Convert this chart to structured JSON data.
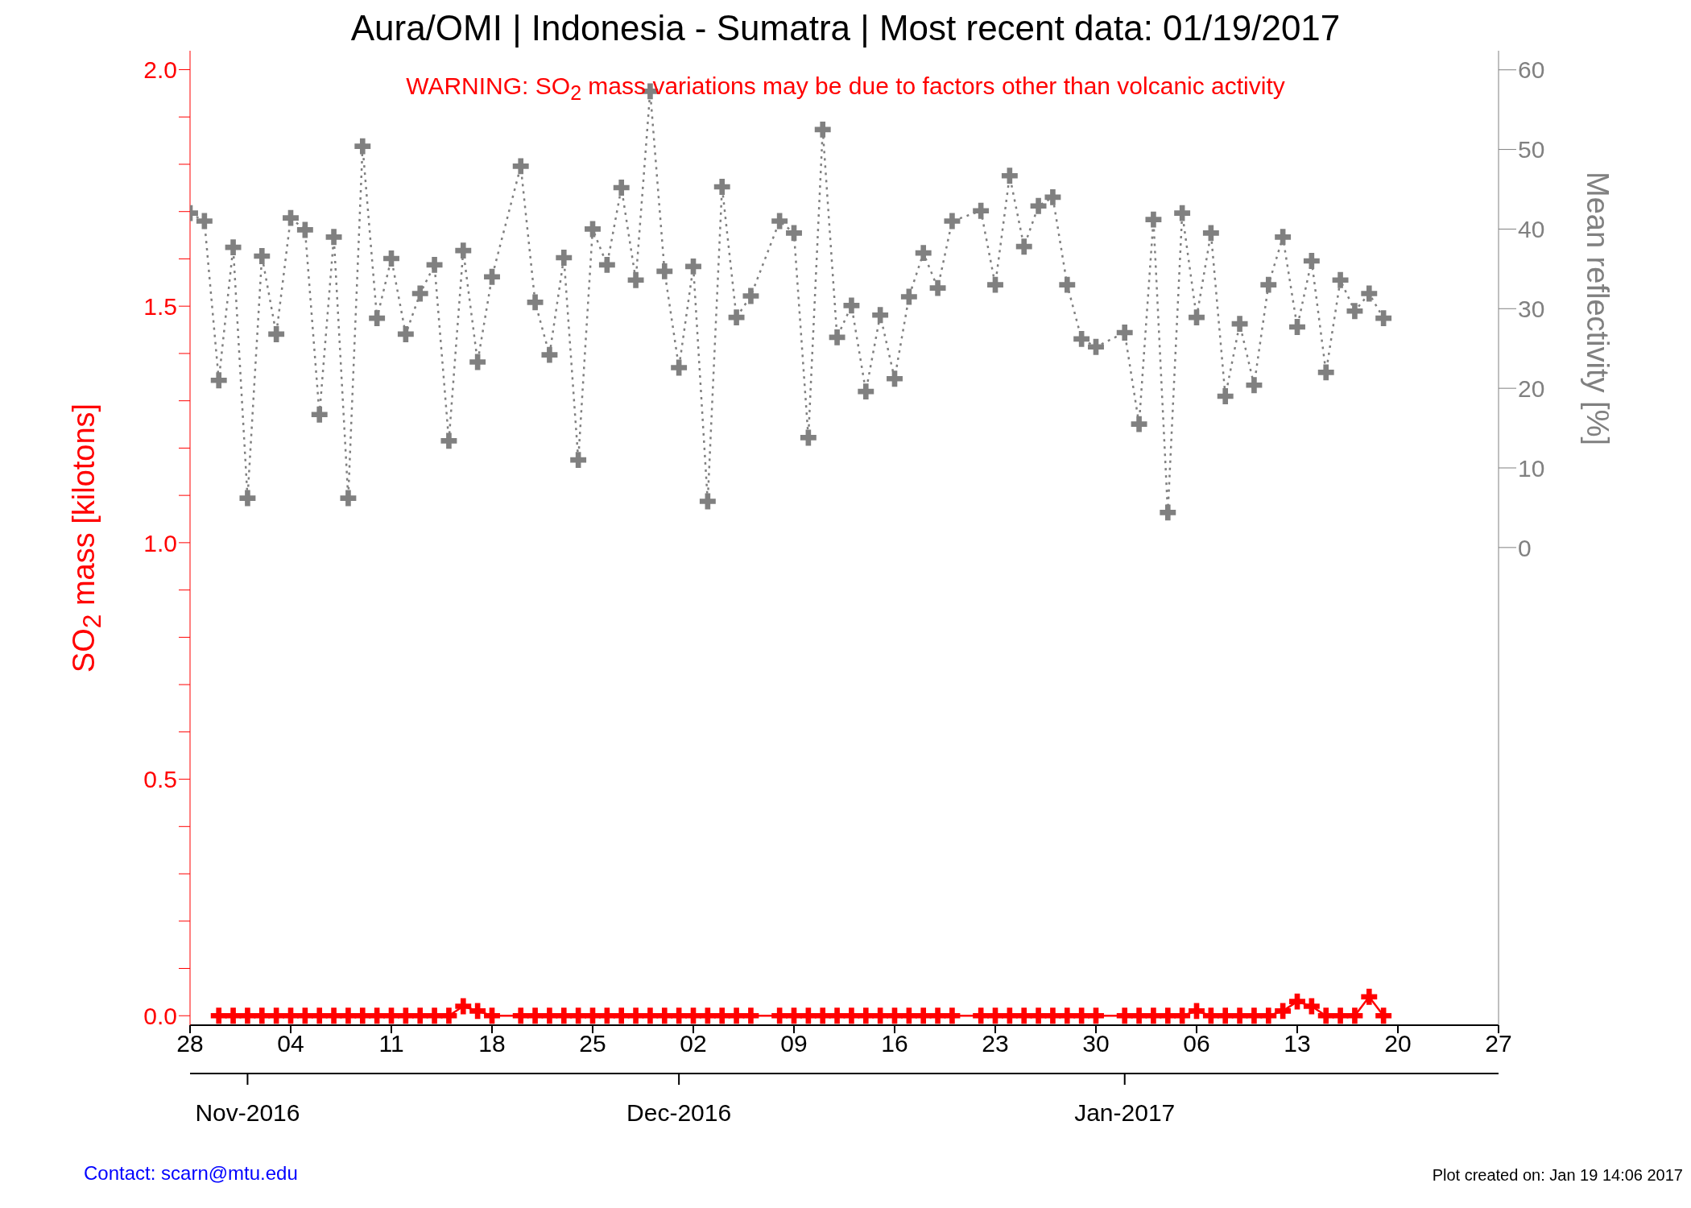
{
  "chart_data": {
    "type": "line",
    "title": "Aura/OMI | Indonesia - Sumatra | Most recent data: 01/19/2017",
    "ylabel": "SO$_{2}$ mass [kilotons]",
    "y2label": "Mean reflectivity [%]",
    "annotations": [
      "WARNING: SO$_{2}$ mass variations may be due to factors other than volcanic activity",
      "Contact: scarn@mtu.edu",
      "Plot created on: Jan 19 14:06 2017"
    ],
    "x": [
      "2016-10-28",
      "2016-10-29",
      "2016-10-30",
      "2016-10-31",
      "2016-11-01",
      "2016-11-02",
      "2016-11-03",
      "2016-11-04",
      "2016-11-05",
      "2016-11-06",
      "2016-11-07",
      "2016-11-08",
      "2016-11-09",
      "2016-11-10",
      "2016-11-11",
      "2016-11-12",
      "2016-11-13",
      "2016-11-14",
      "2016-11-15",
      "2016-11-16",
      "2016-11-17",
      "2016-11-18",
      "2016-11-20",
      "2016-11-21",
      "2016-11-22",
      "2016-11-23",
      "2016-11-24",
      "2016-11-25",
      "2016-11-26",
      "2016-11-27",
      "2016-11-28",
      "2016-11-29",
      "2016-11-30",
      "2016-12-01",
      "2016-12-02",
      "2016-12-03",
      "2016-12-04",
      "2016-12-05",
      "2016-12-06",
      "2016-12-08",
      "2016-12-09",
      "2016-12-10",
      "2016-12-11",
      "2016-12-12",
      "2016-12-13",
      "2016-12-14",
      "2016-12-15",
      "2016-12-16",
      "2016-12-17",
      "2016-12-18",
      "2016-12-19",
      "2016-12-20",
      "2016-12-22",
      "2016-12-23",
      "2016-12-24",
      "2016-12-25",
      "2016-12-26",
      "2016-12-27",
      "2016-12-28",
      "2016-12-29",
      "2016-12-30",
      "2017-01-01",
      "2017-01-02",
      "2017-01-03",
      "2017-01-04",
      "2017-01-05",
      "2017-01-06",
      "2017-01-07",
      "2017-01-08",
      "2017-01-09",
      "2017-01-10",
      "2017-01-11",
      "2017-01-12",
      "2017-01-13",
      "2017-01-14",
      "2017-01-15",
      "2017-01-16",
      "2017-01-17",
      "2017-01-18",
      "2017-01-19"
    ],
    "series": [
      {
        "color": "#ff0000",
        "line_style": "solid",
        "values": [
          null,
          null,
          0,
          0,
          0,
          0,
          0,
          0,
          0,
          0,
          0,
          0,
          0,
          0,
          0,
          0,
          0,
          0,
          0,
          0.02,
          0.01,
          0,
          0,
          0,
          0,
          0,
          0,
          0,
          0,
          0,
          0,
          0,
          0,
          0,
          0,
          0,
          0,
          0,
          0,
          0,
          0,
          0,
          0,
          0,
          0,
          0,
          0,
          0,
          0,
          0,
          0,
          0,
          0,
          0,
          0,
          0,
          0,
          0,
          0,
          0,
          0,
          0,
          0,
          0,
          0,
          0,
          0.01,
          0,
          0,
          0,
          0,
          0,
          0.01,
          0.03,
          0.02,
          0,
          0,
          0,
          0.04,
          0
        ]
      },
      {
        "color": "#808080",
        "axis": "y2",
        "line_style": "dotted",
        "values": [
          42,
          41,
          21,
          37.7,
          6.2,
          36.6,
          26.8,
          41.4,
          39.9,
          16.7,
          39,
          6.2,
          50.4,
          28.8,
          36.3,
          26.8,
          31.9,
          35.5,
          13.4,
          37.3,
          23.3,
          34,
          47.9,
          30.8,
          24.2,
          36.4,
          11,
          40,
          35.5,
          45.2,
          33.6,
          57.3,
          34.7,
          22.6,
          35.3,
          5.8,
          45.3,
          28.9,
          31.6,
          41,
          39.5,
          13.8,
          52.5,
          26.4,
          30.4,
          19.6,
          29.2,
          21.2,
          31.5,
          37,
          32.6,
          41,
          42.3,
          33,
          46.7,
          37.8,
          42.9,
          44,
          33,
          26.2,
          25.2,
          27,
          15.5,
          41.2,
          4.4,
          42,
          28.9,
          39.5,
          19,
          28.1,
          20.4,
          33,
          39,
          27.7,
          36,
          22,
          33.6,
          29.7,
          31.9,
          28.8
        ]
      }
    ],
    "marker": "cross",
    "grid": false,
    "xlim": [
      "2016-10-28",
      "2017-01-27"
    ],
    "xticks": [
      {
        "value": "2016-10-28",
        "label": "28"
      },
      {
        "value": "2016-11-04",
        "label": "04"
      },
      {
        "value": "2016-11-11",
        "label": "11"
      },
      {
        "value": "2016-11-18",
        "label": "18"
      },
      {
        "value": "2016-11-25",
        "label": "25"
      },
      {
        "value": "2016-12-02",
        "label": "02"
      },
      {
        "value": "2016-12-09",
        "label": "09"
      },
      {
        "value": "2016-12-16",
        "label": "16"
      },
      {
        "value": "2016-12-23",
        "label": "23"
      },
      {
        "value": "2016-12-30",
        "label": "30"
      },
      {
        "value": "2017-01-06",
        "label": "06"
      },
      {
        "value": "2017-01-13",
        "label": "13"
      },
      {
        "value": "2017-01-20",
        "label": "20"
      },
      {
        "value": "2017-01-27",
        "label": "27"
      }
    ],
    "x2lim": [
      "2016-10-28",
      "2017-01-27"
    ],
    "x2ticks": [
      {
        "value": "2016-11-01",
        "label": "Nov-2016"
      },
      {
        "value": "2016-12-01",
        "label": "Dec-2016"
      },
      {
        "value": "2017-01-01",
        "label": "Jan-2017"
      }
    ],
    "ylim": [
      -0.02,
      2.04
    ],
    "yticks": [
      {
        "value": 0,
        "label": "0.0"
      },
      {
        "value": 0.1,
        "label": null
      },
      {
        "value": 0.2,
        "label": null
      },
      {
        "value": 0.3,
        "label": null
      },
      {
        "value": 0.4,
        "label": null
      },
      {
        "value": 0.5,
        "label": "0.5"
      },
      {
        "value": 0.6,
        "label": null
      },
      {
        "value": 0.7,
        "label": null
      },
      {
        "value": 0.8,
        "label": null
      },
      {
        "value": 0.9,
        "label": null
      },
      {
        "value": 1,
        "label": "1.0"
      },
      {
        "value": 1.1,
        "label": null
      },
      {
        "value": 1.2,
        "label": null
      },
      {
        "value": 1.3,
        "label": null
      },
      {
        "value": 1.4,
        "label": null
      },
      {
        "value": 1.5,
        "label": "1.5"
      },
      {
        "value": 1.6,
        "label": null
      },
      {
        "value": 1.7,
        "label": null
      },
      {
        "value": 1.8,
        "label": null
      },
      {
        "value": 1.9,
        "label": null
      },
      {
        "value": 2,
        "label": "2.0"
      }
    ],
    "y2lim": [
      -60,
      62.4
    ],
    "y2ticks": [
      0,
      10,
      20,
      30,
      40,
      50,
      60
    ]
  }
}
